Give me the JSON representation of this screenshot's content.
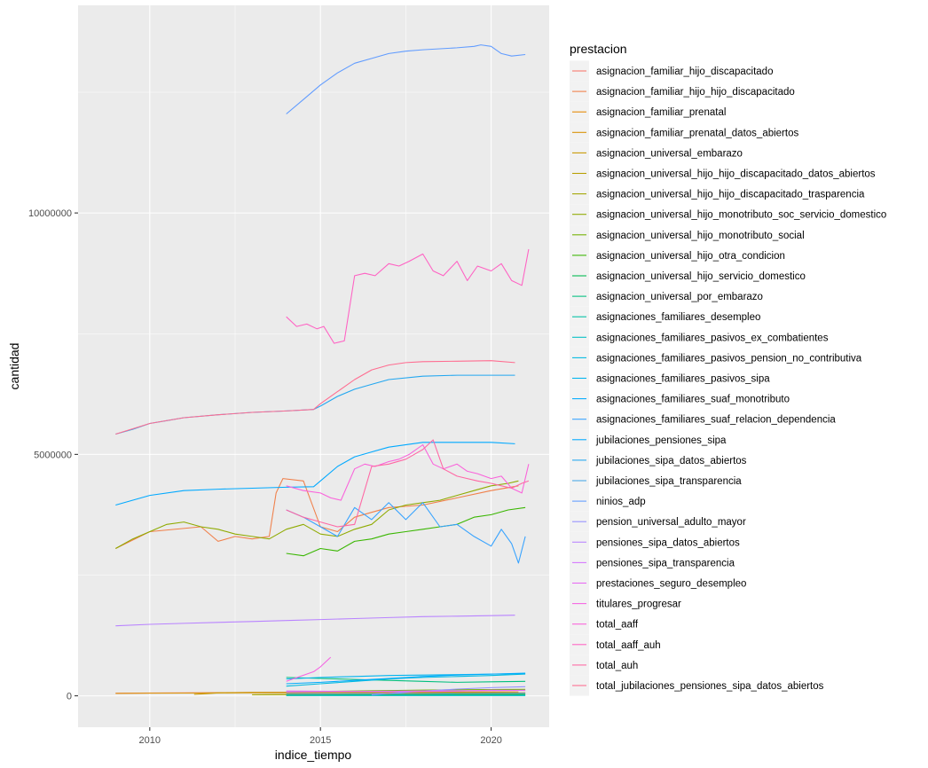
{
  "chart_data": {
    "type": "line",
    "xlabel": "indice_tiempo",
    "ylabel": "cantidad",
    "xlim": [
      2007.9,
      2021.7
    ],
    "ylim": [
      -650000,
      14300000
    ],
    "x_ticks": [
      2010,
      2015,
      2020
    ],
    "x_tick_labels": [
      "2010",
      "2015",
      "2020"
    ],
    "y_ticks": [
      0,
      5000000,
      10000000
    ],
    "y_tick_labels": [
      "0",
      "5000000",
      "10000000"
    ],
    "grid": true,
    "legend": {
      "title": "prestacion",
      "placement": "right"
    },
    "series": [
      {
        "name": "asignacion_familiar_hijo_discapacitado",
        "color": "#F8766D",
        "x": [
          2009.0,
          2011.0,
          2013.0,
          2015.0,
          2017.0,
          2019.0,
          2020.8
        ],
        "y": [
          55000,
          60000,
          70000,
          80000,
          90000,
          100000,
          105000
        ]
      },
      {
        "name": "asignacion_familiar_hijo_hijo_discapacitado",
        "color": "#F07F49",
        "x": [
          2009.0,
          2010.0,
          2011.5,
          2012.0,
          2012.5,
          2013.0,
          2013.5,
          2013.7,
          2013.9,
          2014.5,
          2015.0,
          2015.5,
          2016.0,
          2016.5,
          2017.0,
          2018.0,
          2019.0,
          2020.0,
          2020.8
        ],
        "y": [
          3050000,
          3400000,
          3500000,
          3200000,
          3300000,
          3250000,
          3300000,
          4200000,
          4500000,
          4450000,
          3500000,
          3400000,
          3700000,
          3800000,
          3900000,
          3950000,
          4100000,
          4250000,
          4350000
        ]
      },
      {
        "name": "asignacion_familiar_prenatal",
        "color": "#E58700",
        "x": [
          2014.0,
          2015.0,
          2016.0,
          2017.0,
          2018.0,
          2019.0,
          2020.0,
          2021.0
        ],
        "y": [
          60000,
          62000,
          64000,
          66000,
          65000,
          64000,
          60000,
          62000
        ]
      },
      {
        "name": "asignacion_familiar_prenatal_datos_abiertos",
        "color": "#D89000",
        "x": [
          2009.0,
          2010.0,
          2011.0,
          2012.0,
          2013.0,
          2014.0,
          2015.0,
          2016.0,
          2017.0,
          2018.0,
          2019.0,
          2020.0,
          2020.8
        ],
        "y": [
          50000,
          55000,
          58000,
          60000,
          62000,
          65000,
          66000,
          68000,
          70000,
          72000,
          70000,
          65000,
          62000
        ]
      },
      {
        "name": "asignacion_universal_embarazo",
        "color": "#C99800",
        "x": [
          2011.3,
          2012.0,
          2013.0,
          2014.0,
          2015.0,
          2016.0,
          2017.0,
          2018.0,
          2019.0,
          2020.0,
          2020.8
        ],
        "y": [
          30000,
          60000,
          70000,
          70000,
          75000,
          80000,
          80000,
          78000,
          77000,
          75000,
          72000
        ]
      },
      {
        "name": "asignacion_universal_hijo_hijo_discapacitado_datos_abiertos",
        "color": "#B79F00",
        "x": [
          2013.0,
          2014.0,
          2015.0,
          2016.0,
          2017.0,
          2018.0,
          2019.0,
          2020.0,
          2020.8
        ],
        "y": [
          20000,
          25000,
          30000,
          32000,
          35000,
          38000,
          40000,
          42000,
          44000
        ]
      },
      {
        "name": "asignacion_universal_hijo_hijo_discapacitado_trasparencia",
        "color": "#A3A500",
        "x": [
          2013.0,
          2014.0,
          2015.0,
          2016.0,
          2017.0,
          2018.0,
          2019.0,
          2020.0,
          2021.0
        ],
        "y": [
          22000,
          26000,
          31000,
          33000,
          36000,
          39000,
          41000,
          43000,
          45000
        ]
      },
      {
        "name": "asignacion_universal_hijo_monotributo_soc_servicio_domestico",
        "color": "#8FAA00",
        "x": [
          2009.0,
          2009.5,
          2010.0,
          2010.5,
          2011.0,
          2011.5,
          2012.0,
          2012.5,
          2013.0,
          2013.5,
          2014.0,
          2014.5,
          2015.0,
          2015.5,
          2016.0,
          2016.5,
          2017.0,
          2017.5,
          2018.0,
          2018.5,
          2019.0,
          2019.5,
          2020.0,
          2020.5,
          2020.8
        ],
        "y": [
          3050000,
          3250000,
          3400000,
          3550000,
          3600000,
          3500000,
          3450000,
          3350000,
          3300000,
          3250000,
          3450000,
          3550000,
          3350000,
          3300000,
          3450000,
          3550000,
          3850000,
          3950000,
          4000000,
          4050000,
          4150000,
          4250000,
          4350000,
          4400000,
          4450000
        ]
      },
      {
        "name": "asignacion_universal_hijo_monotributo_social",
        "color": "#72B000",
        "x": [
          2014.0,
          2015.0,
          2016.0,
          2017.0,
          2018.0,
          2019.0,
          2020.0,
          2021.0
        ],
        "y": [
          80000,
          90000,
          100000,
          110000,
          120000,
          125000,
          130000,
          135000
        ]
      },
      {
        "name": "asignacion_universal_hijo_otra_condicion",
        "color": "#39B600",
        "x": [
          2014.0,
          2014.5,
          2015.0,
          2015.5,
          2016.0,
          2016.5,
          2017.0,
          2017.5,
          2018.0,
          2018.5,
          2019.0,
          2019.5,
          2020.0,
          2020.5,
          2021.0
        ],
        "y": [
          2950000,
          2900000,
          3050000,
          3000000,
          3200000,
          3250000,
          3350000,
          3400000,
          3450000,
          3500000,
          3550000,
          3700000,
          3750000,
          3850000,
          3900000
        ]
      },
      {
        "name": "asignacion_universal_hijo_servicio_domestico",
        "color": "#00BB4E",
        "x": [
          2014.0,
          2015.0,
          2016.0,
          2017.0,
          2018.0,
          2019.0,
          2020.0,
          2021.0
        ],
        "y": [
          15000,
          18000,
          20000,
          22000,
          24000,
          25000,
          26000,
          27000
        ]
      },
      {
        "name": "asignacion_universal_por_embarazo",
        "color": "#00BF7D",
        "x": [
          2014.0,
          2015.0,
          2016.0,
          2017.0,
          2018.0,
          2019.0,
          2020.0,
          2021.0
        ],
        "y": [
          380000,
          360000,
          340000,
          320000,
          300000,
          280000,
          290000,
          300000
        ]
      },
      {
        "name": "asignaciones_familiares_desempleo",
        "color": "#00C1A3",
        "x": [
          2014.0,
          2015.0,
          2016.0,
          2017.0,
          2018.0,
          2019.0,
          2020.0,
          2021.0
        ],
        "y": [
          10000,
          11000,
          12000,
          13000,
          13000,
          14000,
          15000,
          15000
        ]
      },
      {
        "name": "asignaciones_familiares_pasivos_ex_combatientes",
        "color": "#00BFC4",
        "x": [
          2014.0,
          2015.0,
          2016.0,
          2017.0,
          2018.0,
          2019.0,
          2020.0,
          2021.0
        ],
        "y": [
          5000,
          5000,
          5000,
          5000,
          5000,
          5000,
          5000,
          5000
        ]
      },
      {
        "name": "asignaciones_familiares_pasivos_pension_no_contributiva",
        "color": "#00BAE0",
        "x": [
          2014.0,
          2015.0,
          2016.0,
          2017.0,
          2018.0,
          2019.0,
          2020.0,
          2021.0
        ],
        "y": [
          200000,
          250000,
          300000,
          350000,
          380000,
          400000,
          420000,
          450000
        ]
      },
      {
        "name": "asignaciones_familiares_pasivos_sipa",
        "color": "#00B4EF",
        "x": [
          2014.0,
          2015.0,
          2016.0,
          2017.0,
          2018.0,
          2019.0,
          2020.0,
          2021.0
        ],
        "y": [
          350000,
          380000,
          400000,
          420000,
          430000,
          440000,
          450000,
          460000
        ]
      },
      {
        "name": "asignaciones_familiares_suaf_monotributo",
        "color": "#00ABFD",
        "x": [
          2014.0,
          2015.0,
          2016.0,
          2017.0,
          2018.0,
          2019.0,
          2020.0,
          2021.0
        ],
        "y": [
          250000,
          280000,
          320000,
          360000,
          400000,
          430000,
          450000,
          470000
        ]
      },
      {
        "name": "asignaciones_familiares_suaf_relacion_dependencia",
        "color": "#35A2FF",
        "x": [
          2014.0,
          2014.5,
          2015.0,
          2015.5,
          2016.0,
          2016.5,
          2017.0,
          2017.5,
          2018.0,
          2018.5,
          2019.0,
          2019.5,
          2020.0,
          2020.3,
          2020.6,
          2020.8,
          2021.0
        ],
        "y": [
          3850000,
          3700000,
          3500000,
          3300000,
          3900000,
          3650000,
          4000000,
          3650000,
          4000000,
          3500000,
          3550000,
          3300000,
          3100000,
          3450000,
          3150000,
          2750000,
          3300000
        ]
      },
      {
        "name": "jubilaciones_pensiones_sipa",
        "color": "#00A9FF",
        "x": [
          2009.0,
          2010.0,
          2011.0,
          2012.0,
          2013.0,
          2014.0,
          2014.8,
          2015.0,
          2015.5,
          2016.0,
          2016.5,
          2017.0,
          2018.0,
          2019.0,
          2020.0,
          2020.7
        ],
        "y": [
          3950000,
          4150000,
          4250000,
          4280000,
          4300000,
          4320000,
          4330000,
          4450000,
          4750000,
          4950000,
          5050000,
          5150000,
          5250000,
          5250000,
          5250000,
          5220000
        ]
      },
      {
        "name": "jubilaciones_sipa_datos_abiertos",
        "color": "#22A7F0",
        "x": [
          2009.0,
          2009.5,
          2010.0,
          2010.5,
          2011.0,
          2012.0,
          2013.0,
          2014.0,
          2014.8,
          2015.0,
          2015.5,
          2016.0,
          2016.5,
          2017.0,
          2018.0,
          2019.0,
          2020.0,
          2020.7
        ],
        "y": [
          5420000,
          5520000,
          5640000,
          5700000,
          5760000,
          5820000,
          5870000,
          5900000,
          5930000,
          6000000,
          6200000,
          6350000,
          6450000,
          6550000,
          6620000,
          6640000,
          6640000,
          6640000
        ]
      },
      {
        "name": "jubilaciones_sipa_transparencia",
        "color": "#4BA8E6",
        "x": [
          2014.0,
          2015.0,
          2016.0,
          2017.0,
          2018.0,
          2019.0,
          2020.0,
          2021.0
        ],
        "y": [
          40000,
          42000,
          44000,
          46000,
          48000,
          50000,
          52000,
          54000
        ]
      },
      {
        "name": "ninios_adp",
        "color": "#619CFF",
        "x": [
          2014.0,
          2014.5,
          2015.0,
          2015.5,
          2016.0,
          2016.5,
          2017.0,
          2017.5,
          2018.0,
          2018.5,
          2019.0,
          2019.5,
          2019.7,
          2020.0,
          2020.3,
          2020.6,
          2021.0
        ],
        "y": [
          12050000,
          12350000,
          12650000,
          12900000,
          13100000,
          13200000,
          13300000,
          13350000,
          13380000,
          13400000,
          13420000,
          13450000,
          13480000,
          13450000,
          13300000,
          13250000,
          13280000
        ]
      },
      {
        "name": "pension_universal_adulto_mayor",
        "color": "#9590FF",
        "x": [
          2016.5,
          2017.0,
          2018.0,
          2019.0,
          2020.0,
          2021.0
        ],
        "y": [
          20000,
          50000,
          100000,
          140000,
          170000,
          190000
        ]
      },
      {
        "name": "pensiones_sipa_datos_abiertos",
        "color": "#B983FF",
        "x": [
          2009.0,
          2010.0,
          2011.0,
          2012.0,
          2013.0,
          2014.0,
          2015.0,
          2016.0,
          2017.0,
          2018.0,
          2019.0,
          2020.0,
          2020.7
        ],
        "y": [
          1450000,
          1480000,
          1500000,
          1520000,
          1540000,
          1560000,
          1580000,
          1600000,
          1620000,
          1640000,
          1650000,
          1660000,
          1670000
        ]
      },
      {
        "name": "pensiones_sipa_transparencia",
        "color": "#D575FE",
        "x": [
          2014.0,
          2015.0,
          2016.0,
          2017.0,
          2018.0,
          2019.0,
          2020.0,
          2021.0
        ],
        "y": [
          80000,
          85000,
          90000,
          95000,
          100000,
          105000,
          110000,
          115000
        ]
      },
      {
        "name": "prestaciones_seguro_desempleo",
        "color": "#E76BF3",
        "x": [
          2014.0,
          2015.0,
          2016.0,
          2017.0,
          2018.0,
          2019.0,
          2020.0,
          2021.0
        ],
        "y": [
          100000,
          95000,
          90000,
          85000,
          90000,
          95000,
          120000,
          110000
        ]
      },
      {
        "name": "titulares_progresar",
        "color": "#F564E3",
        "x": [
          2014.0,
          2014.4,
          2014.8,
          2015.0,
          2015.3
        ],
        "y": [
          300000,
          400000,
          500000,
          600000,
          800000
        ]
      },
      {
        "name": "total_aaff",
        "color": "#FA62DB",
        "x": [
          2014.0,
          2014.5,
          2015.0,
          2015.3,
          2015.6,
          2016.0,
          2016.3,
          2016.6,
          2017.0,
          2017.3,
          2017.6,
          2018.0,
          2018.3,
          2018.6,
          2019.0,
          2019.3,
          2019.6,
          2020.0,
          2020.3,
          2020.6,
          2020.9,
          2021.1
        ],
        "y": [
          4350000,
          4250000,
          4200000,
          4100000,
          4050000,
          4700000,
          4800000,
          4750000,
          4850000,
          4900000,
          5000000,
          5200000,
          4800000,
          4700000,
          4800000,
          4650000,
          4600000,
          4500000,
          4550000,
          4300000,
          4200000,
          4800000
        ]
      },
      {
        "name": "total_aaff_auh",
        "color": "#FF61C3",
        "x": [
          2014.0,
          2014.3,
          2014.6,
          2014.9,
          2015.1,
          2015.4,
          2015.7,
          2016.0,
          2016.3,
          2016.6,
          2017.0,
          2017.3,
          2017.6,
          2018.0,
          2018.3,
          2018.6,
          2019.0,
          2019.3,
          2019.6,
          2020.0,
          2020.3,
          2020.6,
          2020.9,
          2021.1
        ],
        "y": [
          7850000,
          7650000,
          7700000,
          7600000,
          7650000,
          7300000,
          7350000,
          8700000,
          8750000,
          8700000,
          8950000,
          8900000,
          9000000,
          9150000,
          8800000,
          8700000,
          9000000,
          8600000,
          8900000,
          8800000,
          8950000,
          8600000,
          8500000,
          9250000
        ]
      },
      {
        "name": "total_auh",
        "color": "#FF67A4",
        "x": [
          2014.0,
          2014.5,
          2015.0,
          2015.5,
          2016.0,
          2016.5,
          2017.0,
          2017.5,
          2018.0,
          2018.3,
          2018.6,
          2019.0,
          2019.3,
          2019.6,
          2020.0,
          2020.3,
          2020.6,
          2020.9,
          2021.1
        ],
        "y": [
          3850000,
          3700000,
          3600000,
          3500000,
          3550000,
          4750000,
          4800000,
          4900000,
          5100000,
          5300000,
          4700000,
          4550000,
          4500000,
          4450000,
          4400000,
          4350000,
          4300000,
          4400000,
          4450000
        ]
      },
      {
        "name": "total_jubilaciones_pensiones_sipa_datos_abiertos",
        "color": "#FF6C90",
        "x": [
          2009.0,
          2010.0,
          2011.0,
          2012.0,
          2013.0,
          2014.0,
          2014.8,
          2015.0,
          2015.5,
          2016.0,
          2016.5,
          2017.0,
          2017.5,
          2018.0,
          2019.0,
          2020.0,
          2020.7
        ],
        "y": [
          5420000,
          5640000,
          5760000,
          5820000,
          5870000,
          5900000,
          5930000,
          6050000,
          6300000,
          6550000,
          6750000,
          6850000,
          6900000,
          6920000,
          6930000,
          6940000,
          6900000
        ]
      }
    ]
  }
}
